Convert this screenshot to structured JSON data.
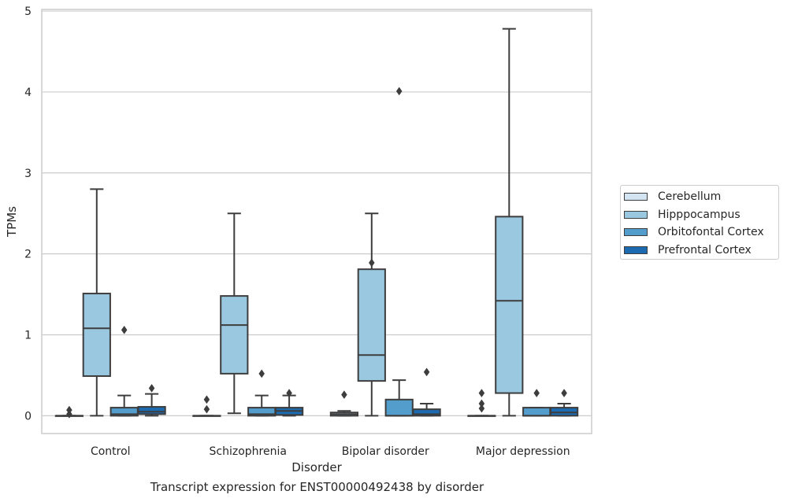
{
  "caption": "Transcript expression for ENST00000492438 by disorder",
  "chart_data": {
    "type": "box",
    "xlabel": "Disorder",
    "ylabel": "TPMs",
    "ylim": [
      -0.22,
      5.02
    ],
    "yticks": [
      0,
      1,
      2,
      3,
      4,
      5
    ],
    "grid": true,
    "legend_position": "right",
    "categories": [
      "Control",
      "Schizophrenia",
      "Bipolar disorder",
      "Major depression"
    ],
    "series": [
      {
        "name": "Cerebellum",
        "color": "#d3e4f3",
        "boxes": [
          {
            "whisker_low": 0,
            "q1": 0,
            "median": 0,
            "q3": 0,
            "whisker_high": 0,
            "outliers": [
              0.07,
              0.02
            ]
          },
          {
            "whisker_low": 0,
            "q1": 0,
            "median": 0,
            "q3": 0,
            "whisker_high": 0,
            "outliers": [
              0.2,
              0.08
            ]
          },
          {
            "whisker_low": 0,
            "q1": 0,
            "median": 0.02,
            "q3": 0.04,
            "whisker_high": 0.06,
            "outliers": [
              0.26
            ]
          },
          {
            "whisker_low": 0,
            "q1": 0,
            "median": 0,
            "q3": 0,
            "whisker_high": 0,
            "outliers": [
              0.28,
              0.15,
              0.09
            ]
          }
        ]
      },
      {
        "name": "Hipppocampus",
        "color": "#9ac8e0",
        "boxes": [
          {
            "whisker_low": 0,
            "q1": 0.49,
            "median": 1.08,
            "q3": 1.51,
            "whisker_high": 2.8,
            "outliers": []
          },
          {
            "whisker_low": 0.03,
            "q1": 0.52,
            "median": 1.12,
            "q3": 1.48,
            "whisker_high": 2.5,
            "outliers": []
          },
          {
            "whisker_low": 0,
            "q1": 0.43,
            "median": 0.75,
            "q3": 1.81,
            "whisker_high": 2.5,
            "outliers": [
              1.89
            ]
          },
          {
            "whisker_low": 0,
            "q1": 0.28,
            "median": 1.42,
            "q3": 2.46,
            "whisker_high": 4.78,
            "outliers": []
          }
        ]
      },
      {
        "name": "Orbitofontal Cortex",
        "color": "#529dcc",
        "boxes": [
          {
            "whisker_low": 0,
            "q1": 0,
            "median": 0.02,
            "q3": 0.1,
            "whisker_high": 0.25,
            "outliers": [
              1.06
            ]
          },
          {
            "whisker_low": 0,
            "q1": 0,
            "median": 0.02,
            "q3": 0.1,
            "whisker_high": 0.25,
            "outliers": [
              0.52
            ]
          },
          {
            "whisker_low": 0,
            "q1": 0,
            "median": 0,
            "q3": 0.2,
            "whisker_high": 0.44,
            "outliers": [
              4.01
            ]
          },
          {
            "whisker_low": 0,
            "q1": 0,
            "median": 0,
            "q3": 0.1,
            "whisker_high": 0.1,
            "outliers": [
              0.28
            ]
          }
        ]
      },
      {
        "name": "Prefrontal Cortex",
        "color": "#1c6bb0",
        "boxes": [
          {
            "whisker_low": 0,
            "q1": 0.02,
            "median": 0.05,
            "q3": 0.11,
            "whisker_high": 0.27,
            "outliers": [
              0.34
            ]
          },
          {
            "whisker_low": 0,
            "q1": 0.01,
            "median": 0.06,
            "q3": 0.1,
            "whisker_high": 0.25,
            "outliers": [
              0.28
            ]
          },
          {
            "whisker_low": 0,
            "q1": 0,
            "median": 0.02,
            "q3": 0.08,
            "whisker_high": 0.15,
            "outliers": [
              0.54
            ]
          },
          {
            "whisker_low": 0,
            "q1": 0,
            "median": 0.04,
            "q3": 0.1,
            "whisker_high": 0.15,
            "outliers": [
              0.28
            ]
          }
        ]
      }
    ]
  }
}
